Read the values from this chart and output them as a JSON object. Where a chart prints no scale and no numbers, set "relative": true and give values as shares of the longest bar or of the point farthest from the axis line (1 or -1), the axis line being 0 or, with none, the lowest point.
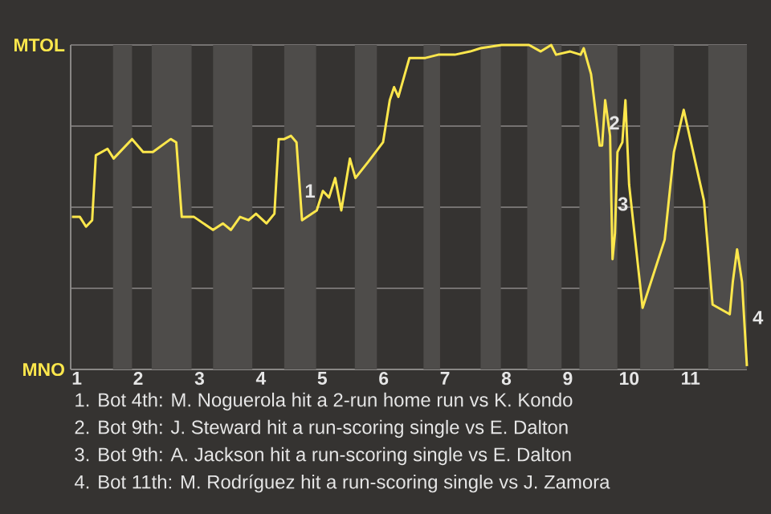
{
  "chart_data": {
    "type": "line",
    "relative": true,
    "x": [
      0.92,
      1.05,
      1.15,
      1.25,
      1.31,
      1.5,
      1.6,
      1.9,
      2.08,
      2.24,
      2.53,
      2.62,
      2.71,
      2.91,
      3.22,
      3.38,
      3.51,
      3.66,
      3.8,
      3.92,
      4.09,
      4.22,
      4.29,
      4.38,
      4.49,
      4.58,
      4.67,
      4.91,
      5.01,
      5.11,
      5.21,
      5.31,
      5.45,
      5.54,
      5.75,
      5.99,
      6.1,
      6.17,
      6.24,
      6.42,
      6.68,
      6.89,
      7.16,
      7.41,
      7.58,
      7.92,
      8.37,
      8.56,
      8.73,
      8.81,
      9.04,
      9.21,
      9.26,
      9.38,
      9.52,
      9.56,
      9.61,
      9.69,
      9.73,
      9.77,
      9.81,
      9.89,
      9.94,
      10.0,
      10.22,
      10.58,
      10.73,
      10.89,
      11.22,
      11.36,
      11.64,
      11.69,
      11.76,
      11.84,
      11.92
    ],
    "series": [
      {
        "color": "#fde74c",
        "values": [
          0.47,
          0.47,
          0.44,
          0.46,
          0.66,
          0.68,
          0.65,
          0.71,
          0.67,
          0.67,
          0.71,
          0.7,
          0.47,
          0.47,
          0.43,
          0.45,
          0.43,
          0.47,
          0.46,
          0.48,
          0.45,
          0.48,
          0.71,
          0.71,
          0.72,
          0.7,
          0.46,
          0.49,
          0.55,
          0.53,
          0.59,
          0.49,
          0.65,
          0.59,
          0.64,
          0.7,
          0.83,
          0.87,
          0.84,
          0.96,
          0.96,
          0.97,
          0.97,
          0.98,
          0.99,
          1,
          1,
          0.98,
          1,
          0.97,
          0.98,
          0.97,
          0.99,
          0.91,
          0.69,
          0.69,
          0.83,
          0.72,
          0.34,
          0.42,
          0.67,
          0.7,
          0.83,
          0.57,
          0.19,
          0.4,
          0.67,
          0.8,
          0.52,
          0.2,
          0.17,
          0.27,
          0.37,
          0.27,
          0.01
        ]
      }
    ],
    "xlim": [
      0.9,
      11.92
    ],
    "xticks": [
      1,
      2,
      3,
      4,
      5,
      6,
      7,
      8,
      9,
      10,
      11
    ],
    "grid": "y",
    "legend": false,
    "marker": "none",
    "line_style": "solid",
    "bands": [
      {
        "axis": "x",
        "from": 1.59,
        "to": 1.9,
        "color": "#4e4c4a"
      },
      {
        "axis": "x",
        "from": 2.22,
        "to": 2.87,
        "color": "#4e4c4a"
      },
      {
        "axis": "x",
        "from": 3.22,
        "to": 3.86,
        "color": "#4e4c4a"
      },
      {
        "axis": "x",
        "from": 4.38,
        "to": 4.9,
        "color": "#4e4c4a"
      },
      {
        "axis": "x",
        "from": 5.53,
        "to": 5.89,
        "color": "#4e4c4a"
      },
      {
        "axis": "x",
        "from": 6.65,
        "to": 6.92,
        "color": "#4e4c4a"
      },
      {
        "axis": "x",
        "from": 7.58,
        "to": 7.91,
        "color": "#4e4c4a"
      },
      {
        "axis": "x",
        "from": 8.34,
        "to": 8.9,
        "color": "#4e4c4a"
      },
      {
        "axis": "x",
        "from": 9.19,
        "to": 9.81,
        "color": "#4e4c4a"
      },
      {
        "axis": "x",
        "from": 10.18,
        "to": 10.73,
        "color": "#4e4c4a"
      },
      {
        "axis": "x",
        "from": 11.29,
        "to": 11.92,
        "color": "#4e4c4a"
      }
    ],
    "annotations": [
      "MTOL",
      "MNO",
      {
        "text": "1",
        "x": 4.8,
        "y": 0.55
      },
      {
        "text": "2",
        "x": 9.76,
        "y": 0.76
      },
      {
        "text": "3",
        "x": 9.9,
        "y": 0.51
      },
      {
        "text": "4",
        "x": 11.92,
        "y": 0.16
      },
      "1. Bot 4th: M. Noguerola hit a 2-run home run vs K. Kondo",
      "2. Bot 9th: J. Steward hit a run-scoring single vs E. Dalton",
      "3. Bot 9th: A. Jackson hit a run-scoring single vs E. Dalton",
      "4. Bot 11th: M. Rodríguez hit a run-scoring single vs J. Zamora"
    ]
  }
}
